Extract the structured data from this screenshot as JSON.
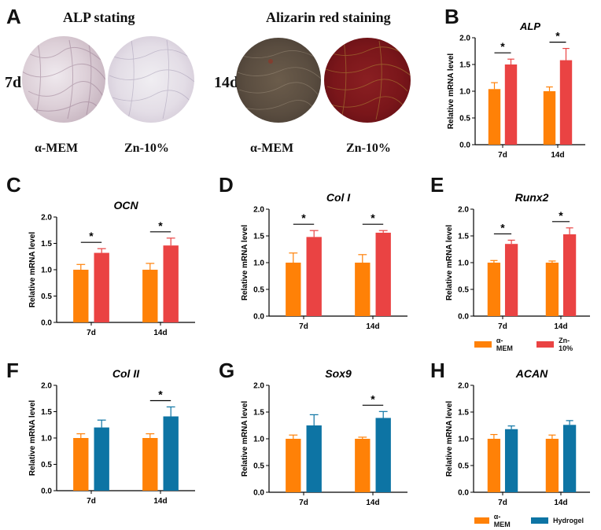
{
  "panels": {
    "A": "A",
    "B": "B",
    "C": "C",
    "D": "D",
    "E": "E",
    "F": "F",
    "G": "G",
    "H": "H"
  },
  "stains": {
    "alp_title": "ALP stating",
    "alizarin_title": "Alizarin red staining",
    "alp_day": "7d",
    "alizarin_day": "14d",
    "label_control": "α-MEM",
    "label_treat": "Zn-10%"
  },
  "legends": {
    "zn": [
      {
        "name": "α-MEM",
        "color": "#ff8107"
      },
      {
        "name": "Zn-10%",
        "color": "#ea4343"
      }
    ],
    "hydrogel": [
      {
        "name": "α-MEM",
        "color": "#ff8107"
      },
      {
        "name": "Hydrogel",
        "color": "#0d74a4"
      }
    ]
  },
  "chart_data": [
    {
      "id": "B",
      "type": "bar",
      "title": "ALP",
      "ylabel": "Relative mRNA level",
      "categories": [
        "7d",
        "14d"
      ],
      "ylim": [
        0,
        2.0
      ],
      "yticks": [
        "0.0",
        "0.5",
        "1.0",
        "1.5",
        "2.0"
      ],
      "series": [
        {
          "name": "α-MEM",
          "color": "#ff8107",
          "values": [
            1.04,
            1.0
          ],
          "errors": [
            0.12,
            0.08
          ]
        },
        {
          "name": "Zn-10%",
          "color": "#ea4343",
          "values": [
            1.5,
            1.58
          ],
          "errors": [
            0.1,
            0.22
          ]
        }
      ],
      "significance": [
        "*",
        "*"
      ]
    },
    {
      "id": "C",
      "type": "bar",
      "title": "OCN",
      "ylabel": "Relative mRNA level",
      "categories": [
        "7d",
        "14d"
      ],
      "ylim": [
        0,
        2.0
      ],
      "yticks": [
        "0.0",
        "0.5",
        "1.0",
        "1.5",
        "2.0"
      ],
      "series": [
        {
          "name": "α-MEM",
          "color": "#ff8107",
          "values": [
            1.0,
            1.0
          ],
          "errors": [
            0.1,
            0.12
          ]
        },
        {
          "name": "Zn-10%",
          "color": "#ea4343",
          "values": [
            1.32,
            1.46
          ],
          "errors": [
            0.08,
            0.14
          ]
        }
      ],
      "significance": [
        "*",
        "*"
      ]
    },
    {
      "id": "D",
      "type": "bar",
      "title": "Col I",
      "ylabel": "Relative mRNA level",
      "categories": [
        "7d",
        "14d"
      ],
      "ylim": [
        0,
        2.0
      ],
      "yticks": [
        "0.0",
        "0.5",
        "1.0",
        "1.5",
        "2.0"
      ],
      "series": [
        {
          "name": "α-MEM",
          "color": "#ff8107",
          "values": [
            1.0,
            1.0
          ],
          "errors": [
            0.18,
            0.15
          ]
        },
        {
          "name": "Zn-10%",
          "color": "#ea4343",
          "values": [
            1.48,
            1.56
          ],
          "errors": [
            0.12,
            0.04
          ]
        }
      ],
      "significance": [
        "*",
        "*"
      ]
    },
    {
      "id": "E",
      "type": "bar",
      "title": "Runx2",
      "ylabel": "Relative mRNA level",
      "categories": [
        "7d",
        "14d"
      ],
      "ylim": [
        0,
        2.0
      ],
      "yticks": [
        "0.0",
        "0.5",
        "1.0",
        "1.5",
        "2.0"
      ],
      "series": [
        {
          "name": "α-MEM",
          "color": "#ff8107",
          "values": [
            1.0,
            1.0
          ],
          "errors": [
            0.04,
            0.03
          ]
        },
        {
          "name": "Zn-10%",
          "color": "#ea4343",
          "values": [
            1.35,
            1.53
          ],
          "errors": [
            0.07,
            0.12
          ]
        }
      ],
      "significance": [
        "*",
        "*"
      ]
    },
    {
      "id": "F",
      "type": "bar",
      "title": "Col II",
      "ylabel": "Relative mRNA level",
      "categories": [
        "7d",
        "14d"
      ],
      "ylim": [
        0,
        2.0
      ],
      "yticks": [
        "0.0",
        "0.5",
        "1.0",
        "1.5",
        "2.0"
      ],
      "series": [
        {
          "name": "α-MEM",
          "color": "#ff8107",
          "values": [
            1.0,
            1.0
          ],
          "errors": [
            0.08,
            0.08
          ]
        },
        {
          "name": "Hydrogel",
          "color": "#0d74a4",
          "values": [
            1.2,
            1.41
          ],
          "errors": [
            0.14,
            0.18
          ]
        }
      ],
      "significance": [
        "",
        "*"
      ]
    },
    {
      "id": "G",
      "type": "bar",
      "title": "Sox9",
      "ylabel": "Relative mRNA level",
      "categories": [
        "7d",
        "14d"
      ],
      "ylim": [
        0,
        2.0
      ],
      "yticks": [
        "0.0",
        "0.5",
        "1.0",
        "1.5",
        "2.0"
      ],
      "series": [
        {
          "name": "α-MEM",
          "color": "#ff8107",
          "values": [
            1.0,
            1.0
          ],
          "errors": [
            0.07,
            0.03
          ]
        },
        {
          "name": "Hydrogel",
          "color": "#0d74a4",
          "values": [
            1.25,
            1.39
          ],
          "errors": [
            0.2,
            0.12
          ]
        }
      ],
      "significance": [
        "",
        "*"
      ]
    },
    {
      "id": "H",
      "type": "bar",
      "title": "ACAN",
      "ylabel": "Relative mRNA level",
      "categories": [
        "7d",
        "14d"
      ],
      "ylim": [
        0,
        2.0
      ],
      "yticks": [
        "0.0",
        "0.5",
        "1.0",
        "1.5",
        "2.0"
      ],
      "series": [
        {
          "name": "α-MEM",
          "color": "#ff8107",
          "values": [
            1.0,
            1.0
          ],
          "errors": [
            0.08,
            0.07
          ]
        },
        {
          "name": "Hydrogel",
          "color": "#0d74a4",
          "values": [
            1.18,
            1.26
          ],
          "errors": [
            0.06,
            0.08
          ]
        }
      ],
      "significance": [
        "",
        ""
      ]
    }
  ]
}
